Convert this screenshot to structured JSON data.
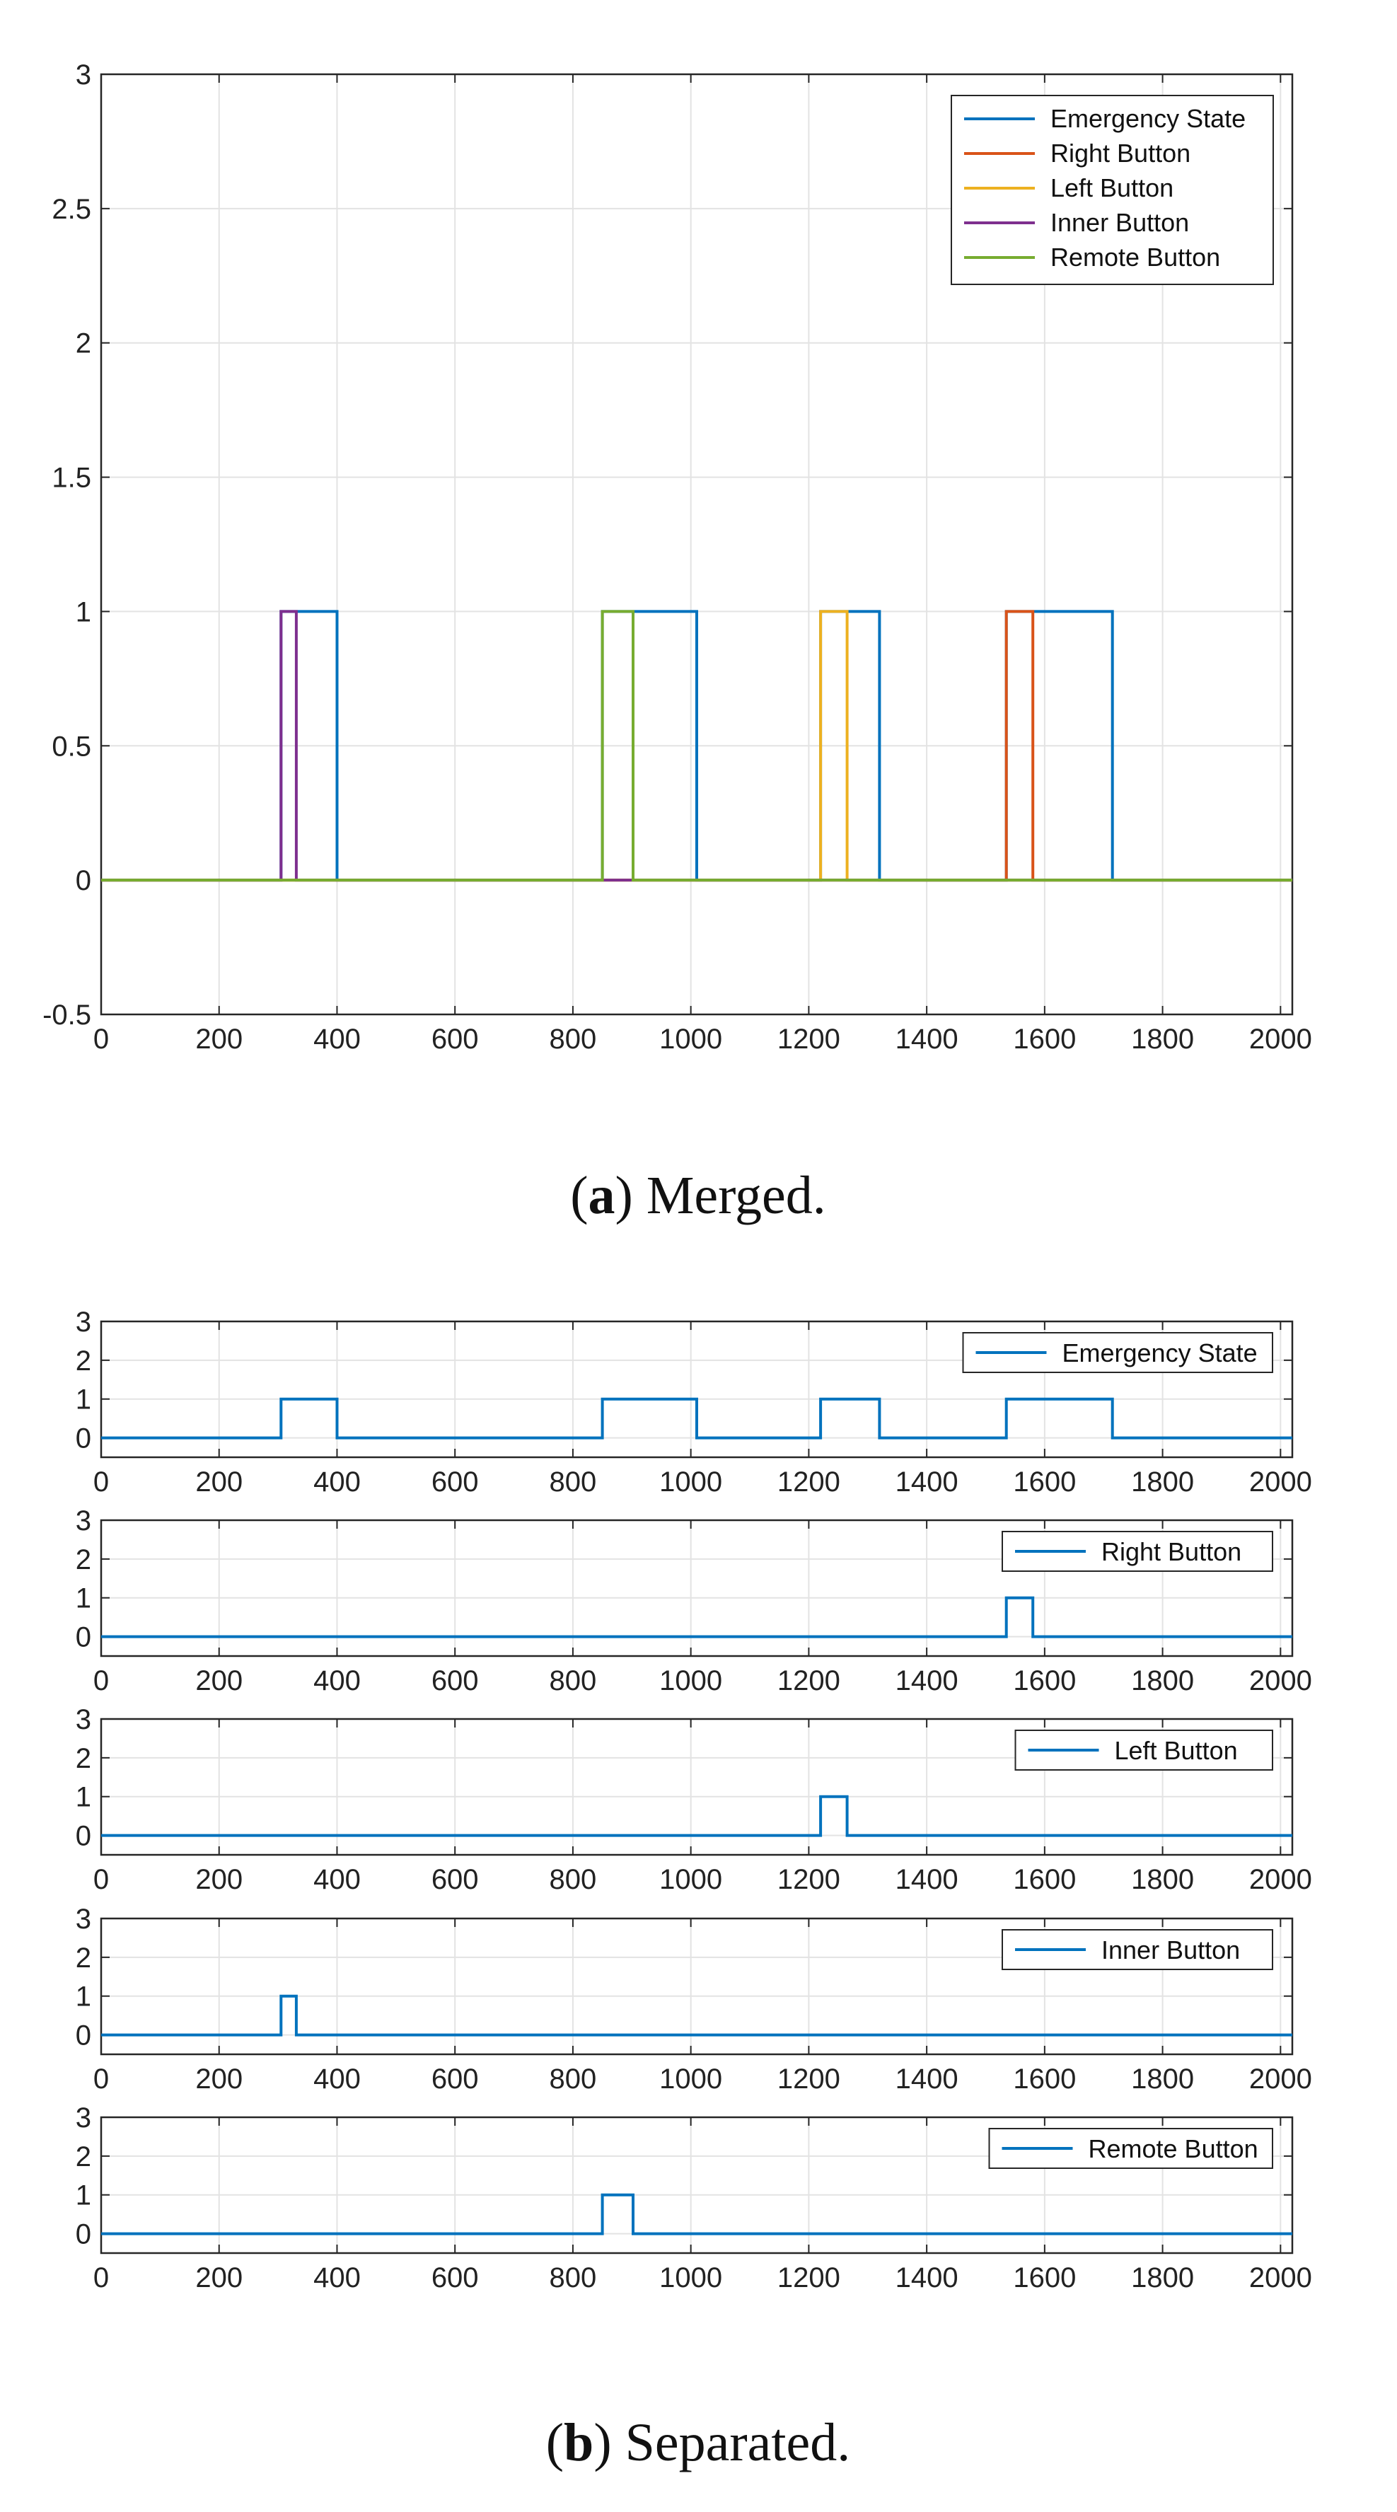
{
  "chart_data": [
    {
      "type": "line",
      "caption": {
        "label": "a",
        "text": "Merged."
      },
      "x": [
        0,
        305,
        331,
        400,
        850,
        902,
        1010,
        1220,
        1265,
        1320,
        1535,
        1580,
        1715,
        2020
      ],
      "xlim": [
        0,
        2020
      ],
      "ylim": [
        -0.5,
        3
      ],
      "xticks": [
        0,
        200,
        400,
        600,
        800,
        1000,
        1200,
        1400,
        1600,
        1800,
        2000
      ],
      "yticks": [
        -0.5,
        0,
        0.5,
        1,
        1.5,
        2,
        2.5,
        3
      ],
      "xtick_labels": [
        "0",
        "200",
        "400",
        "600",
        "800",
        "1000",
        "1200",
        "1400",
        "1600",
        "1800",
        "2000"
      ],
      "ytick_labels": [
        "-0.5",
        "0",
        "0.5",
        "1",
        "1.5",
        "2",
        "2.5",
        "3"
      ],
      "grid": true,
      "legend_position": "top-right",
      "series": [
        {
          "name": "Emergency State",
          "color": "#0072BD",
          "pulses": [
            [
              305,
              400
            ],
            [
              850,
              1010
            ],
            [
              1220,
              1320
            ],
            [
              1535,
              1715
            ]
          ]
        },
        {
          "name": "Right Button",
          "color": "#D95319",
          "pulses": [
            [
              1535,
              1580
            ]
          ]
        },
        {
          "name": "Left Button",
          "color": "#EDB120",
          "pulses": [
            [
              1220,
              1265
            ]
          ]
        },
        {
          "name": "Inner Button",
          "color": "#7E2F8E",
          "pulses": [
            [
              305,
              331
            ]
          ]
        },
        {
          "name": "Remote Button",
          "color": "#77AC30",
          "pulses": [
            [
              850,
              902
            ]
          ]
        }
      ]
    },
    {
      "type": "line",
      "caption": {
        "label": "b",
        "text": "Separated."
      },
      "xlim": [
        0,
        2020
      ],
      "ylim": [
        -0.5,
        3
      ],
      "xticks": [
        0,
        200,
        400,
        600,
        800,
        1000,
        1200,
        1400,
        1600,
        1800,
        2000
      ],
      "yticks": [
        0,
        1,
        2,
        3
      ],
      "xtick_labels": [
        "0",
        "200",
        "400",
        "600",
        "800",
        "1000",
        "1200",
        "1400",
        "1600",
        "1800",
        "2000"
      ],
      "ytick_labels": [
        "0",
        "1",
        "2",
        "3"
      ],
      "grid": true,
      "legend_position": "top-right",
      "subplots": [
        {
          "name": "Emergency State",
          "color": "#0072BD",
          "pulses": [
            [
              305,
              400
            ],
            [
              850,
              1010
            ],
            [
              1220,
              1320
            ],
            [
              1535,
              1715
            ]
          ]
        },
        {
          "name": "Right Button",
          "color": "#0072BD",
          "pulses": [
            [
              1535,
              1580
            ]
          ]
        },
        {
          "name": "Left Button",
          "color": "#0072BD",
          "pulses": [
            [
              1220,
              1265
            ]
          ]
        },
        {
          "name": "Inner Button",
          "color": "#0072BD",
          "pulses": [
            [
              305,
              331
            ]
          ]
        },
        {
          "name": "Remote Button",
          "color": "#0072BD",
          "pulses": [
            [
              850,
              902
            ]
          ]
        }
      ]
    }
  ]
}
